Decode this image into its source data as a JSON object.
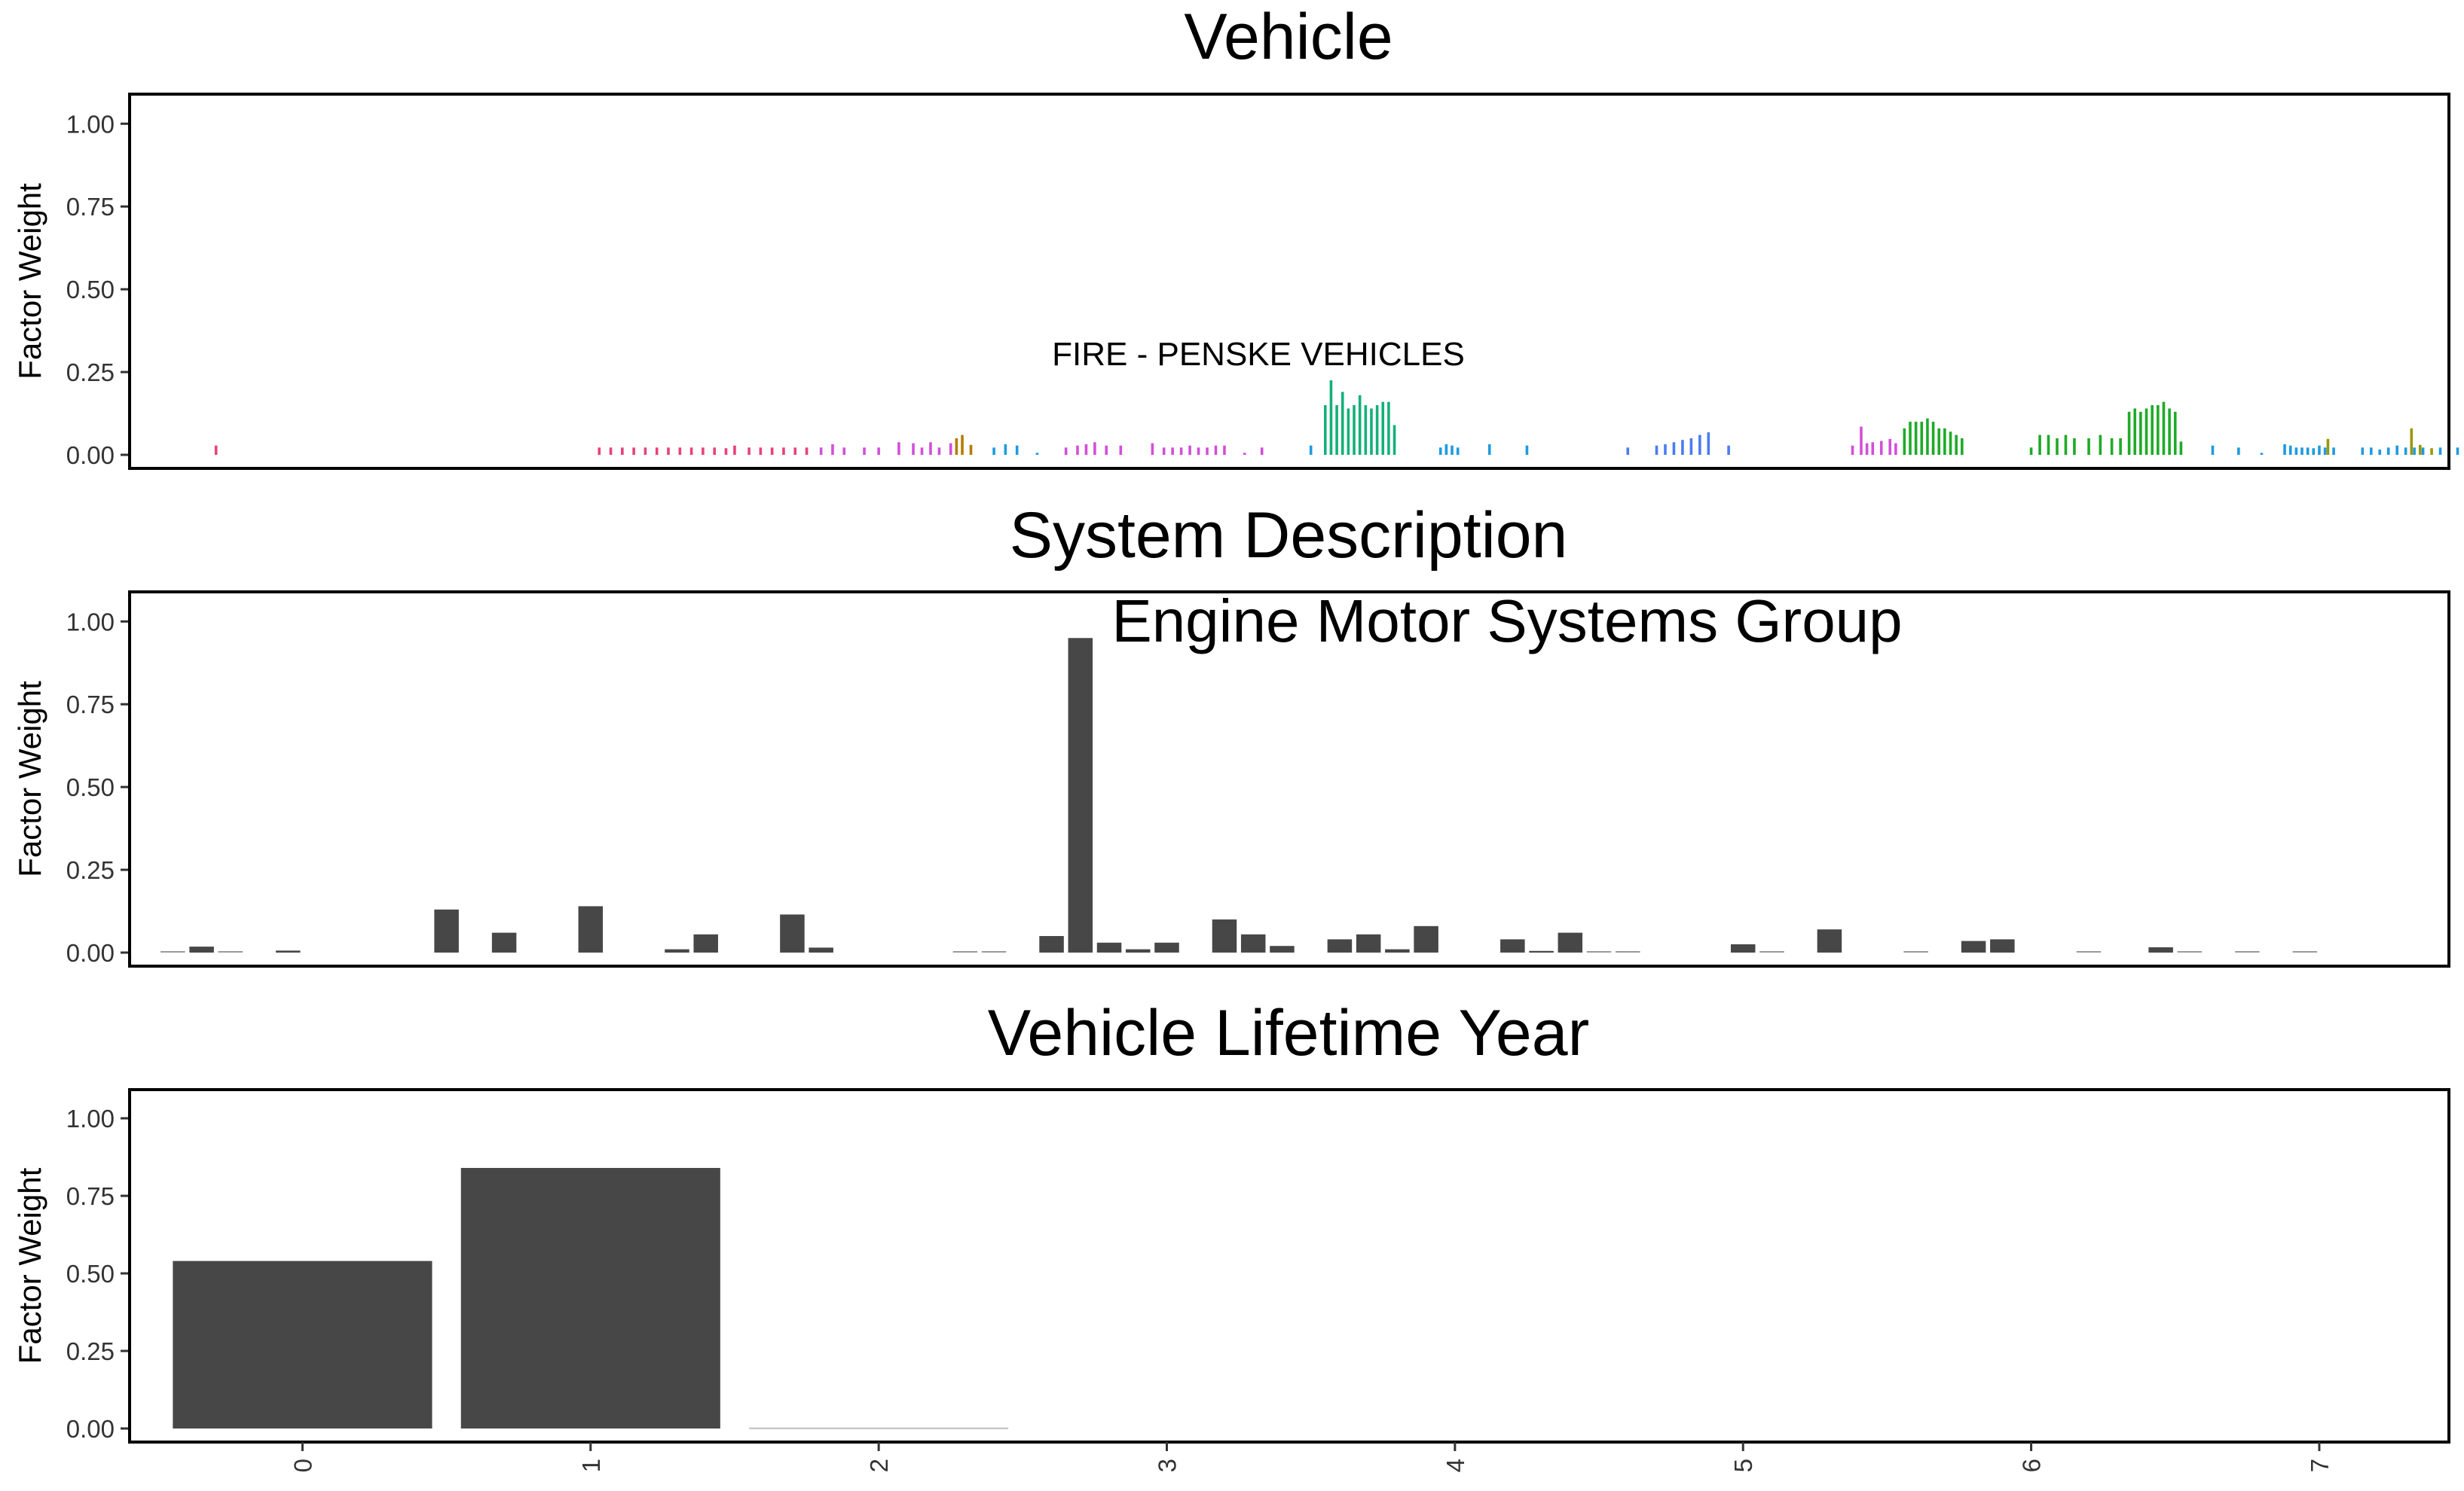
{
  "chart_data": [
    {
      "type": "bar",
      "title": "Vehicle",
      "xlabel": "",
      "ylabel": "Factor Weight",
      "ylim": [
        0,
        1.05
      ],
      "yticks": [
        "0.00",
        "0.25",
        "0.50",
        "0.75",
        "1.00"
      ],
      "grid": false,
      "legend": "none",
      "annotation": {
        "text": "FIRE - PENSKE VEHICLES",
        "at_category": "bar group near x = 4.0",
        "y": 0.24
      },
      "x_domain": [
        -0.6,
        7.45
      ],
      "groups": [
        {
          "color": "#e8427a",
          "x": [
            -0.3
          ],
          "values": [
            0.028
          ]
        },
        {
          "color": "#e8427a",
          "x": [
            1.03,
            1.07,
            1.11,
            1.15,
            1.19,
            1.23,
            1.27,
            1.31,
            1.35,
            1.39,
            1.43,
            1.47,
            1.5,
            1.55,
            1.59,
            1.63,
            1.67,
            1.71,
            1.75
          ],
          "values": [
            0.022,
            0.022,
            0.022,
            0.022,
            0.022,
            0.022,
            0.022,
            0.022,
            0.022,
            0.022,
            0.022,
            0.02,
            0.028,
            0.022,
            0.022,
            0.022,
            0.022,
            0.022,
            0.022
          ]
        },
        {
          "color": "#d24fd9",
          "x": [
            1.8,
            1.84,
            1.88,
            1.95,
            2.0,
            2.07,
            2.12,
            2.15,
            2.18,
            2.21,
            2.25
          ],
          "values": [
            0.022,
            0.032,
            0.022,
            0.022,
            0.022,
            0.038,
            0.035,
            0.022,
            0.038,
            0.022,
            0.035
          ]
        },
        {
          "color": "#b07e00",
          "x": [
            2.27,
            2.29,
            2.32
          ],
          "values": [
            0.05,
            0.06,
            0.03
          ]
        },
        {
          "color": "#1e9be0",
          "x": [
            2.4,
            2.44,
            2.48,
            2.55
          ],
          "values": [
            0.022,
            0.032,
            0.028,
            0.006
          ]
        },
        {
          "color": "#d24fd9",
          "x": [
            2.65,
            2.69,
            2.72,
            2.75,
            2.79,
            2.84,
            2.95,
            2.99,
            3.02,
            3.05,
            3.08,
            3.11,
            3.14,
            3.17,
            3.2,
            3.27,
            3.33
          ],
          "values": [
            0.022,
            0.028,
            0.032,
            0.038,
            0.028,
            0.028,
            0.035,
            0.022,
            0.022,
            0.022,
            0.028,
            0.022,
            0.022,
            0.028,
            0.028,
            0.006,
            0.022
          ]
        },
        {
          "color": "#1e9be0",
          "x": [
            3.5
          ],
          "values": [
            0.028
          ]
        },
        {
          "color": "#14b07a",
          "x": [
            3.55,
            3.57,
            3.59,
            3.61,
            3.63,
            3.65,
            3.67,
            3.69,
            3.71,
            3.73,
            3.75,
            3.77,
            3.79
          ],
          "values": [
            0.15,
            0.225,
            0.15,
            0.19,
            0.14,
            0.15,
            0.18,
            0.15,
            0.14,
            0.15,
            0.16,
            0.16,
            0.09
          ]
        },
        {
          "color": "#1e9be0",
          "x": [
            3.95,
            3.97,
            3.99,
            4.01,
            4.12,
            4.25
          ],
          "values": [
            0.022,
            0.032,
            0.028,
            0.022,
            0.032,
            0.028
          ]
        },
        {
          "color": "#4b7cf0",
          "x": [
            4.6,
            4.7,
            4.73,
            4.76,
            4.79,
            4.82,
            4.85,
            4.88,
            4.95
          ],
          "values": [
            0.022,
            0.028,
            0.032,
            0.038,
            0.045,
            0.05,
            0.06,
            0.068,
            0.028
          ]
        },
        {
          "color": "#d24fd9",
          "x": [
            5.38,
            5.41,
            5.43,
            5.45,
            5.48,
            5.51,
            5.53,
            5.66
          ],
          "values": [
            0.028,
            0.085,
            0.035,
            0.038,
            0.042,
            0.048,
            0.035,
            0.022
          ]
        },
        {
          "color": "#1faa28",
          "x": [
            5.56,
            5.58,
            5.6,
            5.62,
            5.64,
            5.66,
            5.68,
            5.7,
            5.72,
            5.74,
            5.76
          ],
          "values": [
            0.08,
            0.1,
            0.1,
            0.1,
            0.11,
            0.1,
            0.08,
            0.08,
            0.07,
            0.06,
            0.05
          ]
        },
        {
          "color": "#1faa28",
          "x": [
            6.0,
            6.03,
            6.06,
            6.09,
            6.12,
            6.15,
            6.2,
            6.24,
            6.28,
            6.31
          ],
          "values": [
            0.022,
            0.06,
            0.06,
            0.05,
            0.06,
            0.05,
            0.05,
            0.06,
            0.05,
            0.05
          ]
        },
        {
          "color": "#1faa28",
          "x": [
            6.34,
            6.36,
            6.38,
            6.4,
            6.42,
            6.44,
            6.46,
            6.48,
            6.5,
            6.52
          ],
          "values": [
            0.13,
            0.14,
            0.13,
            0.14,
            0.15,
            0.15,
            0.16,
            0.14,
            0.13,
            0.04
          ]
        },
        {
          "color": "#1e9be0",
          "x": [
            6.63,
            6.72,
            6.8,
            6.88,
            6.9,
            6.92,
            6.94,
            6.96,
            6.98,
            7.0,
            7.02,
            7.05,
            7.15,
            7.18,
            7.21,
            7.24,
            7.27,
            7.3,
            7.33,
            7.36,
            7.42,
            7.48,
            7.52,
            7.56,
            7.62,
            7.65
          ],
          "values": [
            0.028,
            0.022,
            0.006,
            0.032,
            0.028,
            0.022,
            0.022,
            0.022,
            0.02,
            0.028,
            0.022,
            0.022,
            0.022,
            0.022,
            0.016,
            0.022,
            0.028,
            0.022,
            0.022,
            0.022,
            0.022,
            0.022,
            0.028,
            0.022,
            0.022,
            0.016
          ]
        },
        {
          "color": "#999900",
          "x": [
            7.03,
            7.32,
            7.35,
            7.39
          ],
          "values": [
            0.048,
            0.08,
            0.03,
            0.02
          ]
        },
        {
          "color": "#999900",
          "x": [
            7.69,
            7.72,
            7.75
          ],
          "values": [
            0.02,
            0.02,
            0.01
          ]
        }
      ]
    },
    {
      "type": "bar",
      "title": "System Description",
      "xlabel": "",
      "ylabel": "Factor Weight",
      "ylim": [
        0,
        1.05
      ],
      "yticks": [
        "0.00",
        "0.25",
        "0.50",
        "0.75",
        "1.00"
      ],
      "grid": false,
      "legend": "none",
      "annotation": {
        "text": "Engine Motor Systems Group",
        "at_category": "tallest bar near x = 2.8",
        "y": 0.95
      },
      "x_domain": [
        -0.6,
        7.45
      ],
      "bar_color": "#474747",
      "bar_width": 0.085,
      "x": [
        -0.45,
        -0.35,
        -0.25,
        -0.05,
        0.5,
        0.7,
        1.0,
        1.3,
        1.4,
        1.7,
        1.8,
        2.3,
        2.4,
        2.6,
        2.7,
        2.8,
        2.9,
        3.0,
        3.2,
        3.3,
        3.4,
        3.6,
        3.7,
        3.8,
        3.9,
        4.2,
        4.3,
        4.4,
        4.5,
        4.6,
        5.0,
        5.1,
        5.3,
        5.6,
        5.8,
        5.9,
        6.2,
        6.45,
        6.55,
        6.75,
        6.95
      ],
      "values": [
        0.004,
        0.018,
        0.004,
        0.006,
        0.13,
        0.06,
        0.14,
        0.01,
        0.055,
        0.115,
        0.015,
        0.004,
        0.004,
        0.05,
        0.95,
        0.03,
        0.01,
        0.03,
        0.1,
        0.055,
        0.02,
        0.04,
        0.055,
        0.01,
        0.08,
        0.04,
        0.005,
        0.06,
        0.003,
        0.002,
        0.025,
        0.003,
        0.07,
        0.004,
        0.035,
        0.04,
        0.003,
        0.016,
        0.004,
        0.004,
        0.004
      ]
    },
    {
      "type": "bar",
      "title": "Vehicle Lifetime Year",
      "xlabel": "",
      "ylabel": "Factor Weight",
      "ylim": [
        0,
        1.05
      ],
      "yticks": [
        "0.00",
        "0.25",
        "0.50",
        "0.75",
        "1.00"
      ],
      "grid": false,
      "legend": "none",
      "x_domain": [
        -0.6,
        7.45
      ],
      "categories": [
        "0",
        "1",
        "2",
        "3",
        "4",
        "5",
        "6",
        "7"
      ],
      "values": [
        0.54,
        0.84,
        0.003,
        0,
        0,
        0,
        0,
        0
      ],
      "bar_color": "#474747"
    }
  ]
}
